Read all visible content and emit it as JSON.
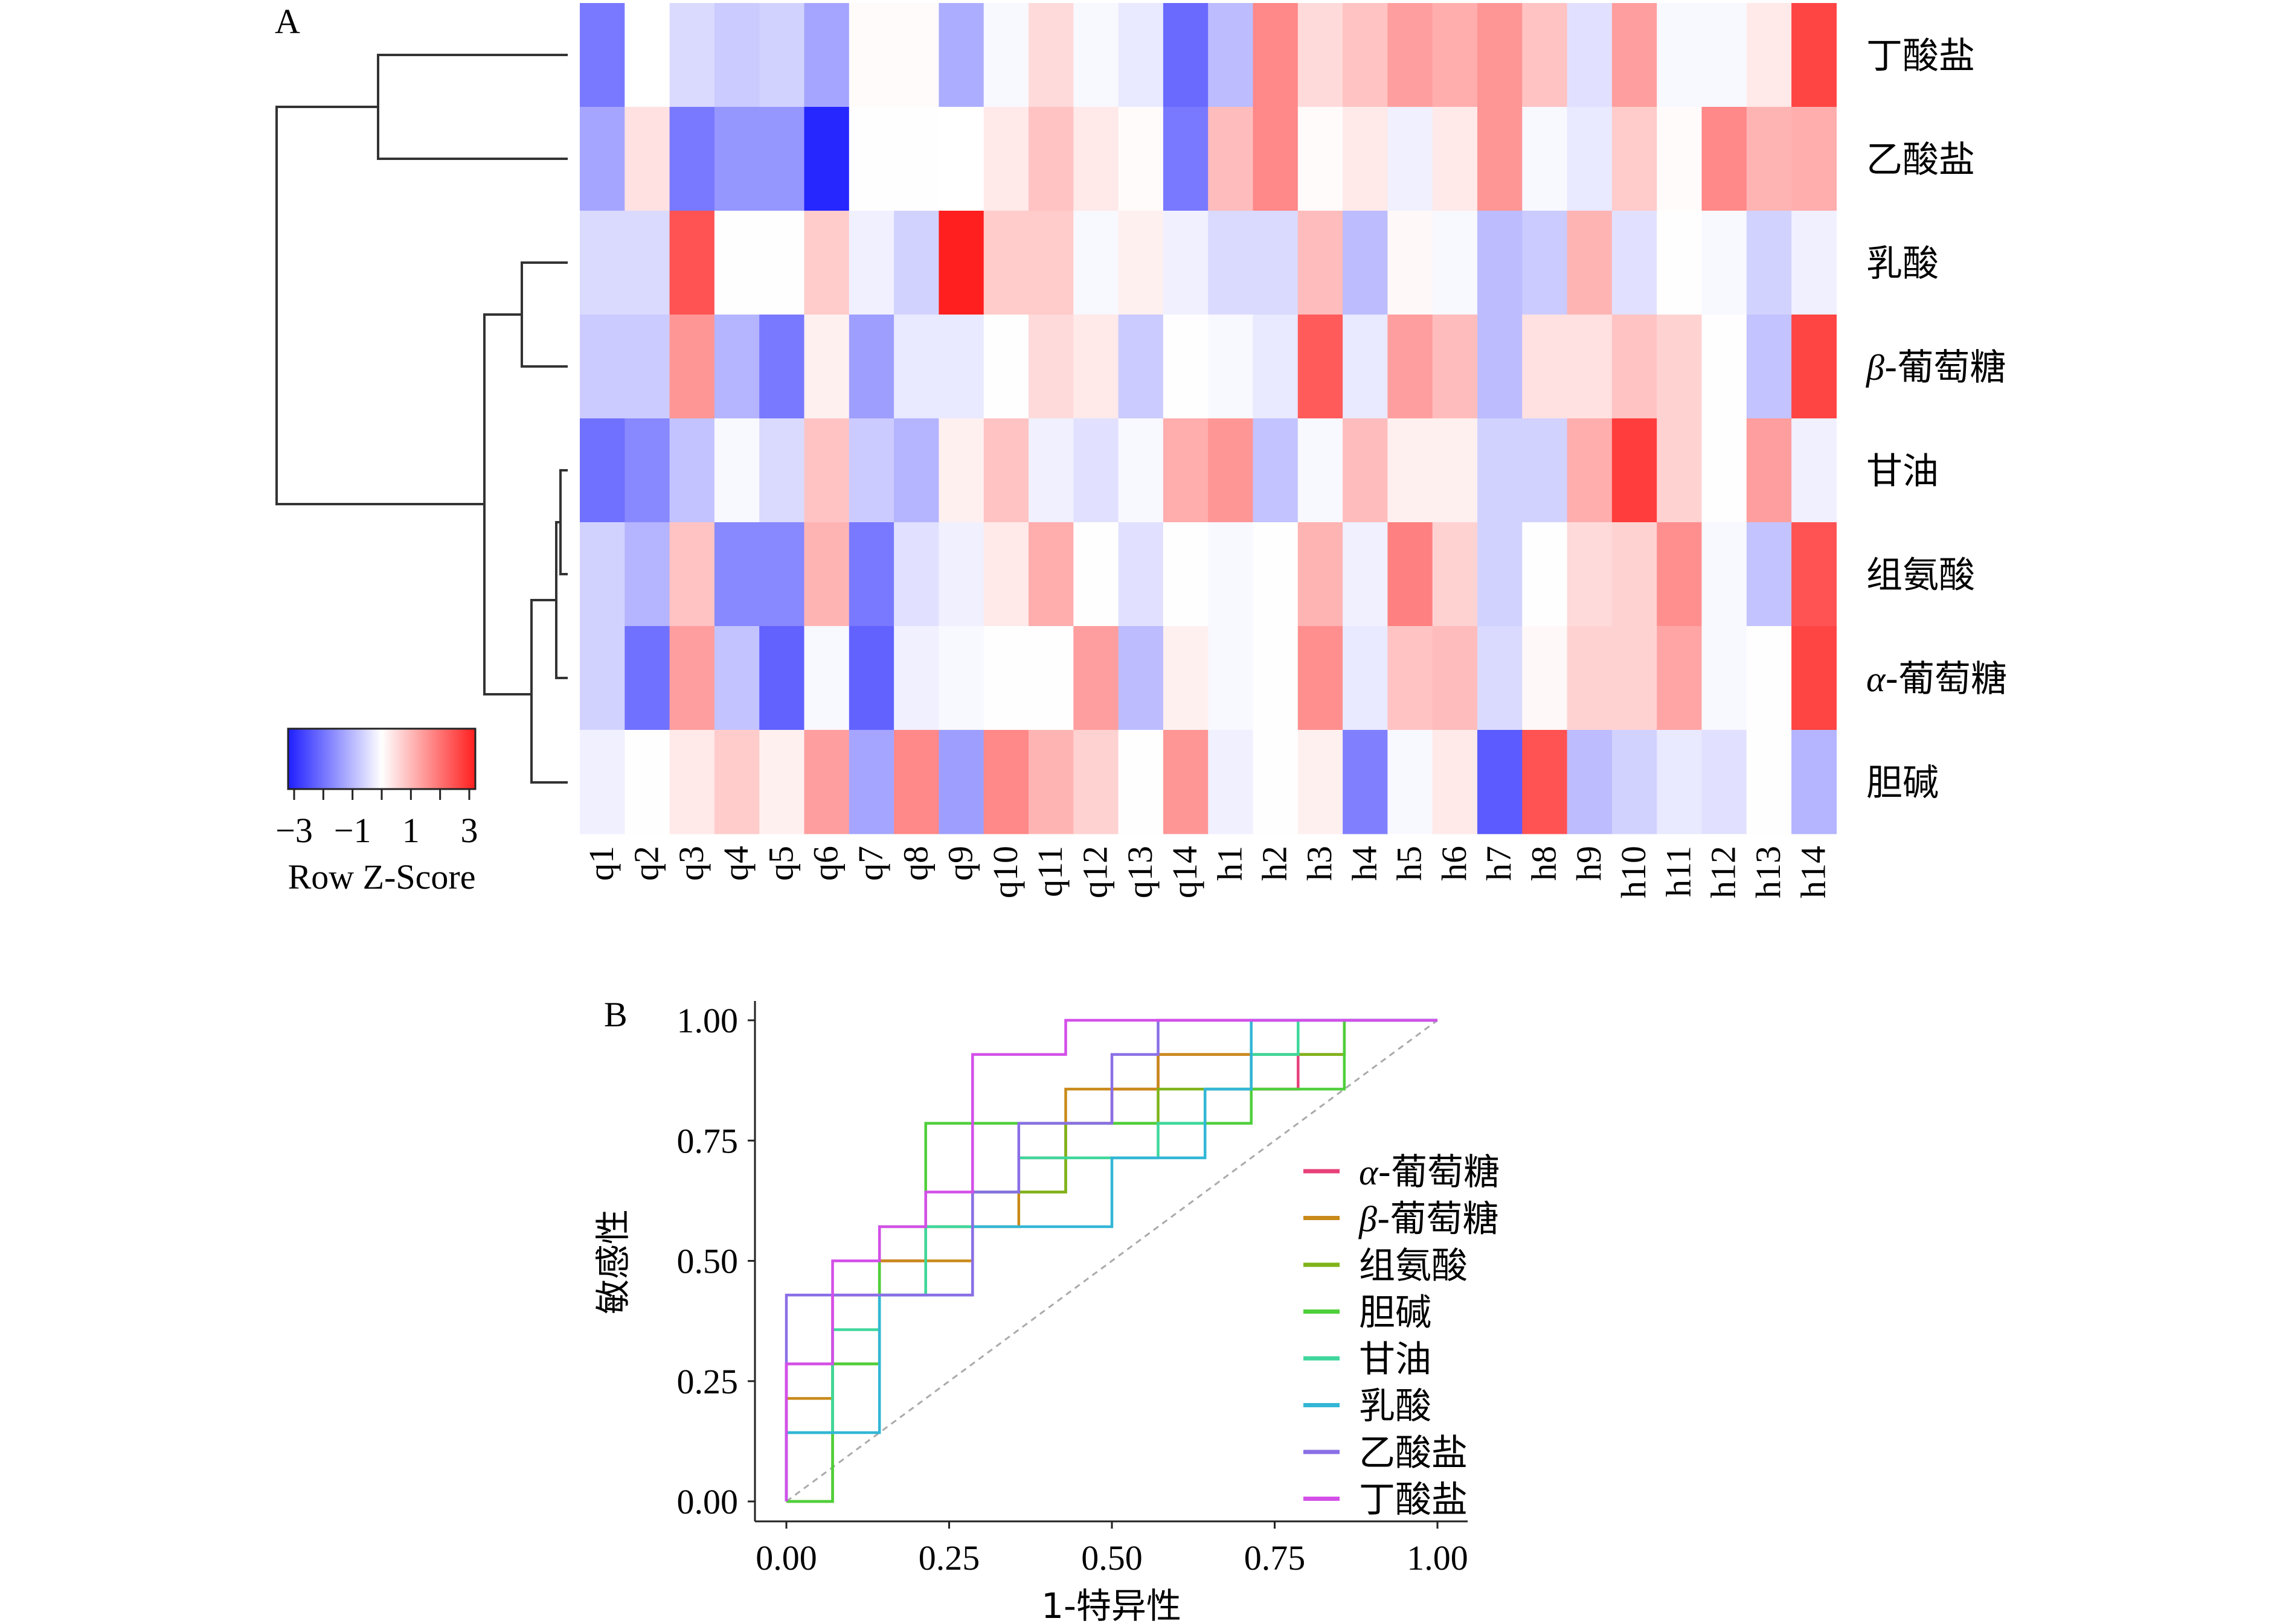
{
  "panelA": {
    "label": "A",
    "columns": [
      "q1",
      "q2",
      "q3",
      "q4",
      "q5",
      "q6",
      "q7",
      "q8",
      "q9",
      "q10",
      "q11",
      "q12",
      "q13",
      "q14",
      "h1",
      "h2",
      "h3",
      "h4",
      "h5",
      "h6",
      "h7",
      "h8",
      "h9",
      "h10",
      "h11",
      "h12",
      "h13",
      "h14"
    ],
    "rows": [
      {
        "prefix": "",
        "name": "丁酸盐"
      },
      {
        "prefix": "",
        "name": "乙酸盐"
      },
      {
        "prefix": "",
        "name": "乳酸"
      },
      {
        "prefix": "β",
        "name": "-葡萄糖"
      },
      {
        "prefix": "",
        "name": "甘油"
      },
      {
        "prefix": "",
        "name": "组氨酸"
      },
      {
        "prefix": "α",
        "name": "-葡萄糖"
      },
      {
        "prefix": "",
        "name": "胆碱"
      }
    ],
    "colorKey": {
      "title": "Row Z-Score",
      "ticks": [
        "−3",
        "−1",
        "1",
        "3"
      ],
      "low_color": "#1f1fff",
      "mid_color": "#ffffff",
      "high_color": "#ff1f1f"
    }
  },
  "panelB": {
    "label": "B"
  },
  "chart_data": [
    {
      "type": "heatmap",
      "title": "",
      "value_label": "Row Z-Score",
      "range": [
        -3,
        3
      ],
      "columns": [
        "q1",
        "q2",
        "q3",
        "q4",
        "q5",
        "q6",
        "q7",
        "q8",
        "q9",
        "q10",
        "q11",
        "q12",
        "q13",
        "q14",
        "h1",
        "h2",
        "h3",
        "h4",
        "h5",
        "h6",
        "h7",
        "h8",
        "h9",
        "h10",
        "h11",
        "h12",
        "h13",
        "h14"
      ],
      "rows": [
        "丁酸盐",
        "乙酸盐",
        "乳酸",
        "β-葡萄糖",
        "甘油",
        "组氨酸",
        "α-葡萄糖",
        "胆碱"
      ],
      "values": [
        [
          -1.8,
          0.0,
          -0.5,
          -0.7,
          -0.6,
          -1.2,
          0.05,
          0.05,
          -1.1,
          -0.1,
          0.5,
          -0.1,
          -0.3,
          -2.0,
          -0.9,
          1.6,
          0.5,
          0.8,
          1.3,
          1.1,
          1.4,
          0.8,
          -0.4,
          1.3,
          -0.1,
          -0.1,
          0.3,
          2.5
        ],
        [
          -1.2,
          0.4,
          -1.8,
          -1.4,
          -1.4,
          -2.9,
          0.02,
          0.02,
          0.0,
          0.3,
          0.8,
          0.3,
          0.05,
          -1.8,
          0.9,
          1.6,
          0.05,
          0.3,
          -0.2,
          0.3,
          1.4,
          -0.1,
          -0.3,
          0.7,
          0.05,
          1.6,
          1.0,
          1.1
        ],
        [
          -0.5,
          -0.5,
          2.3,
          0.02,
          0.02,
          0.7,
          -0.2,
          -0.6,
          3.0,
          0.7,
          0.7,
          -0.1,
          0.2,
          -0.2,
          -0.5,
          -0.5,
          0.9,
          -0.9,
          0.1,
          -0.1,
          -0.9,
          -0.7,
          1.0,
          -0.4,
          0.02,
          -0.1,
          -0.6,
          -0.2
        ],
        [
          -0.7,
          -0.7,
          1.4,
          -1.0,
          -1.8,
          0.2,
          -1.3,
          -0.3,
          -0.3,
          0.02,
          0.5,
          0.3,
          -0.7,
          0.02,
          -0.1,
          -0.3,
          2.2,
          -0.3,
          1.3,
          0.9,
          -0.9,
          0.4,
          0.4,
          0.8,
          0.6,
          0.02,
          -0.8,
          2.5
        ],
        [
          -1.9,
          -1.6,
          -0.8,
          -0.1,
          -0.5,
          0.8,
          -0.7,
          -1.0,
          0.2,
          0.8,
          -0.2,
          -0.4,
          -0.1,
          1.1,
          1.4,
          -0.8,
          -0.1,
          0.9,
          0.2,
          0.2,
          -0.6,
          -0.6,
          1.1,
          2.6,
          0.6,
          0.02,
          1.3,
          -0.2
        ],
        [
          -0.6,
          -1.0,
          0.8,
          -1.6,
          -1.6,
          1.0,
          -1.8,
          -0.4,
          -0.2,
          0.3,
          1.1,
          0.02,
          -0.4,
          0.02,
          -0.1,
          0.02,
          1.0,
          -0.2,
          1.7,
          0.6,
          -0.6,
          0.02,
          0.5,
          0.6,
          1.5,
          -0.1,
          -0.8,
          2.3
        ],
        [
          -0.6,
          -1.9,
          1.3,
          -0.8,
          -2.1,
          -0.1,
          -2.1,
          -0.2,
          -0.1,
          0.02,
          0.02,
          1.3,
          -0.9,
          0.2,
          -0.1,
          0.02,
          1.5,
          -0.3,
          0.8,
          0.9,
          -0.5,
          0.1,
          0.6,
          0.6,
          1.2,
          -0.1,
          0.02,
          2.5
        ],
        [
          -0.2,
          0.02,
          0.3,
          0.7,
          0.2,
          1.3,
          -1.2,
          1.6,
          -1.3,
          1.6,
          1.0,
          0.6,
          0.02,
          1.4,
          -0.2,
          0.02,
          0.2,
          -1.7,
          -0.1,
          0.3,
          -2.2,
          2.3,
          -0.9,
          -0.6,
          -0.3,
          -0.4,
          0.02,
          -1.0
        ]
      ]
    },
    {
      "type": "line",
      "subtype": "roc-step",
      "title": "",
      "xlabel": "1-特异性",
      "ylabel": "敏感性",
      "xlim": [
        0,
        1
      ],
      "ylim": [
        0,
        1
      ],
      "xticks": [
        "0.00",
        "0.25",
        "0.50",
        "0.75",
        "1.00"
      ],
      "yticks": [
        "0.00",
        "0.25",
        "0.50",
        "0.75",
        "1.00"
      ],
      "reference_line": "diagonal",
      "legend_position": "right",
      "series": [
        {
          "prefix": "α",
          "name": "-葡萄糖",
          "color": "#e8417a",
          "x": [
            0,
            0,
            0.071,
            0.071,
            0.143,
            0.143,
            0.214,
            0.214,
            0.286,
            0.286,
            0.357,
            0.357,
            0.429,
            0.429,
            0.5,
            0.5,
            0.571,
            0.571,
            0.714,
            0.714,
            0.786,
            0.786,
            0.857,
            0.857,
            1
          ],
          "y": [
            0,
            0.286,
            0.286,
            0.429,
            0.429,
            0.5,
            0.5,
            0.571,
            0.571,
            0.643,
            0.643,
            0.714,
            0.714,
            0.786,
            0.786,
            0.857,
            0.857,
            0.929,
            0.929,
            0.857,
            0.857,
            0.929,
            0.929,
            1,
            1
          ]
        },
        {
          "prefix": "β",
          "name": "-葡萄糖",
          "color": "#c98a1a",
          "x": [
            0,
            0,
            0.071,
            0.071,
            0.143,
            0.143,
            0.286,
            0.286,
            0.357,
            0.357,
            0.429,
            0.429,
            0.571,
            0.571,
            0.857,
            0.857,
            1
          ],
          "y": [
            0,
            0.214,
            0.214,
            0.286,
            0.286,
            0.5,
            0.5,
            0.571,
            0.571,
            0.643,
            0.643,
            0.857,
            0.857,
            0.929,
            0.929,
            1,
            1
          ]
        },
        {
          "prefix": "",
          "name": "组氨酸",
          "color": "#7fb31a",
          "x": [
            0,
            0,
            0.071,
            0.071,
            0.143,
            0.143,
            0.214,
            0.214,
            0.286,
            0.286,
            0.429,
            0.429,
            0.571,
            0.571,
            0.714,
            0.714,
            0.857,
            0.857,
            1
          ],
          "y": [
            0,
            0.0,
            0.0,
            0.286,
            0.286,
            0.429,
            0.429,
            0.571,
            0.571,
            0.643,
            0.643,
            0.786,
            0.786,
            0.857,
            0.857,
            0.929,
            0.929,
            1,
            1
          ]
        },
        {
          "prefix": "",
          "name": "胆碱",
          "color": "#4fcf3a",
          "x": [
            0,
            0.071,
            0.071,
            0.143,
            0.143,
            0.214,
            0.214,
            0.357,
            0.357,
            0.571,
            0.571,
            0.714,
            0.714,
            0.857,
            0.857,
            1
          ],
          "y": [
            0,
            0,
            0.286,
            0.286,
            0.571,
            0.571,
            0.786,
            0.786,
            0.786,
            0.786,
            0.786,
            0.786,
            0.857,
            0.857,
            1,
            1
          ]
        },
        {
          "prefix": "",
          "name": "甘油",
          "color": "#3fd79c",
          "x": [
            0,
            0,
            0.071,
            0.071,
            0.143,
            0.143,
            0.214,
            0.214,
            0.286,
            0.286,
            0.357,
            0.357,
            0.571,
            0.571,
            0.643,
            0.643,
            0.714,
            0.714,
            0.786,
            0.786,
            1
          ],
          "y": [
            0,
            0.143,
            0.143,
            0.357,
            0.357,
            0.429,
            0.429,
            0.571,
            0.571,
            0.643,
            0.643,
            0.714,
            0.714,
            0.786,
            0.786,
            0.857,
            0.857,
            0.929,
            0.929,
            1,
            1
          ]
        },
        {
          "prefix": "",
          "name": "乳酸",
          "color": "#33b6d6",
          "x": [
            0,
            0,
            0.143,
            0.143,
            0.286,
            0.286,
            0.357,
            0.357,
            0.5,
            0.5,
            0.643,
            0.643,
            0.714,
            0.714,
            1
          ],
          "y": [
            0,
            0.143,
            0.143,
            0.429,
            0.429,
            0.571,
            0.571,
            0.571,
            0.571,
            0.714,
            0.714,
            0.857,
            0.857,
            1,
            1
          ]
        },
        {
          "prefix": "",
          "name": "乙酸盐",
          "color": "#8a6fe6",
          "x": [
            0,
            0,
            0.071,
            0.071,
            0.143,
            0.143,
            0.286,
            0.286,
            0.357,
            0.357,
            0.5,
            0.5,
            0.571,
            0.571,
            1
          ],
          "y": [
            0,
            0.429,
            0.429,
            0.429,
            0.429,
            0.429,
            0.429,
            0.643,
            0.643,
            0.786,
            0.786,
            0.929,
            0.929,
            1,
            1
          ]
        },
        {
          "prefix": "",
          "name": "丁酸盐",
          "color": "#d34fe8",
          "x": [
            0,
            0,
            0.071,
            0.071,
            0.143,
            0.143,
            0.214,
            0.214,
            0.286,
            0.286,
            0.429,
            0.429,
            1
          ],
          "y": [
            0,
            0.286,
            0.286,
            0.5,
            0.5,
            0.571,
            0.571,
            0.643,
            0.643,
            0.929,
            0.929,
            1,
            1
          ]
        }
      ]
    }
  ]
}
